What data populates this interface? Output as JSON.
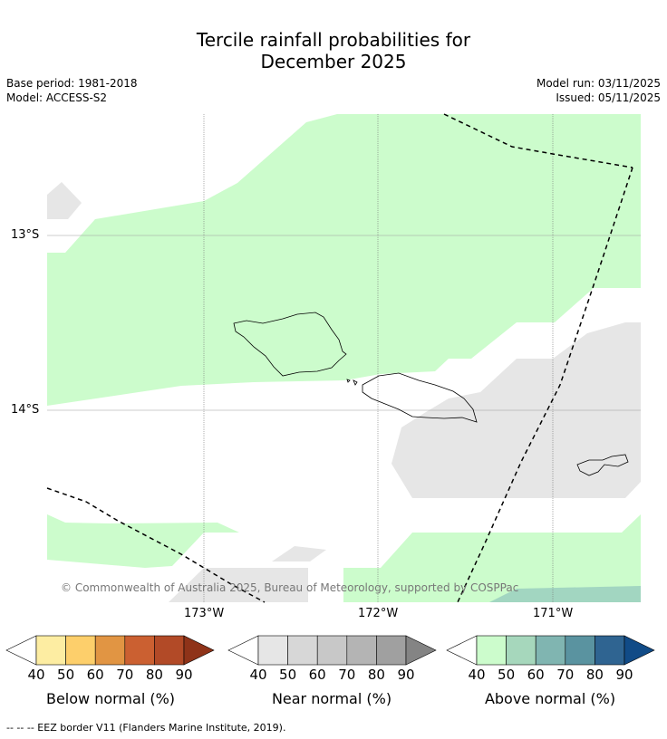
{
  "title": {
    "line1": "Tercile rainfall probabilities for",
    "line2": "December 2025"
  },
  "meta": {
    "base_period": "Base period: 1981-2018",
    "model": "Model: ACCESS-S2",
    "model_run": "Model run: 03/11/2025",
    "issued": "Issued: 05/11/2025"
  },
  "map": {
    "lat_labels": [
      "13°S",
      "14°S"
    ],
    "lon_labels": [
      "173°W",
      "172°W",
      "171°W"
    ],
    "copyright": "© Commonwealth of Australia 2025, Bureau of Meteorology, supported by COSPPac",
    "colors": {
      "above_40": "#ccfccc",
      "above_60": "#a2d6c1",
      "near_40": "#e6e6e6",
      "eez": "#000000",
      "grid": "#888888"
    }
  },
  "colorbars": {
    "below": {
      "label": "Below normal (%)",
      "ticks": [
        "40",
        "50",
        "60",
        "70",
        "80",
        "90"
      ],
      "colors": [
        "#ffffff",
        "#fdeda2",
        "#fdcf6b",
        "#e19543",
        "#cb6031",
        "#b24a27",
        "#8f3319"
      ]
    },
    "near": {
      "label": "Near normal (%)",
      "ticks": [
        "40",
        "50",
        "60",
        "70",
        "80",
        "90"
      ],
      "colors": [
        "#ffffff",
        "#e6e6e6",
        "#d7d7d7",
        "#c8c8c8",
        "#b4b4b4",
        "#a0a0a0",
        "#848484"
      ]
    },
    "above": {
      "label": "Above normal (%)",
      "ticks": [
        "40",
        "50",
        "60",
        "70",
        "80",
        "90"
      ],
      "colors": [
        "#ffffff",
        "#ccfccc",
        "#a6d7bc",
        "#80b5b1",
        "#5a93a0",
        "#2f6491",
        "#114b87"
      ]
    }
  },
  "footnote": "--  --  -- EEZ border V11 (Flanders Marine Institute, 2019)."
}
